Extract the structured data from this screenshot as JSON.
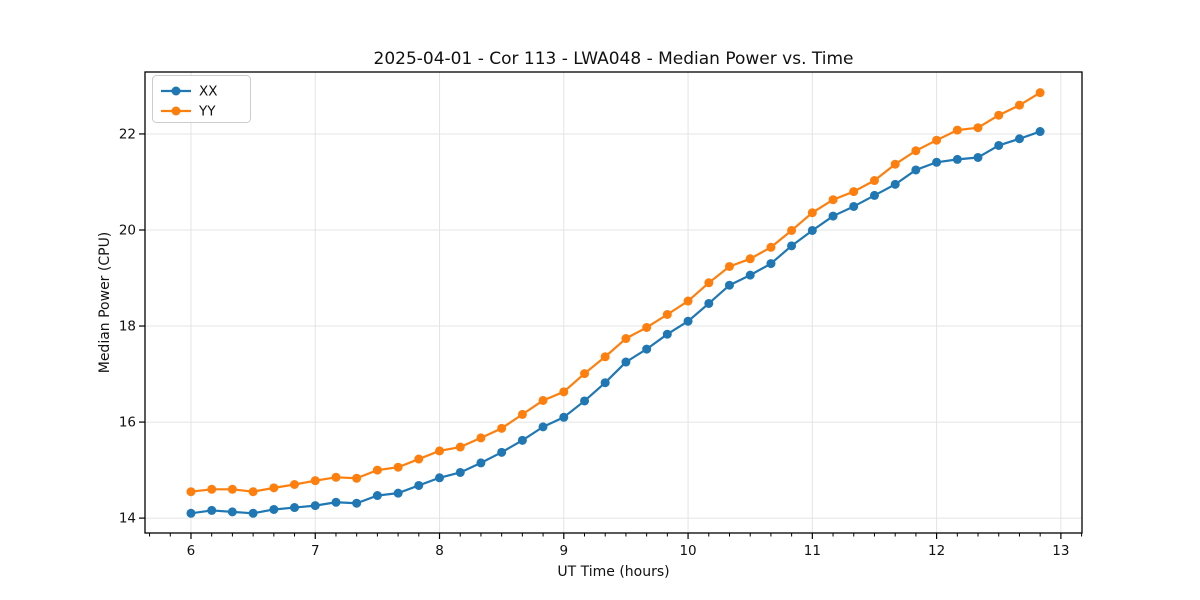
{
  "figure": {
    "background": "#ffffff"
  },
  "chart_data": {
    "type": "line",
    "title": "2025-04-01 - Cor 113 - LWA048 - Median Power vs. Time",
    "xlabel": "UT Time (hours)",
    "ylabel": "Median Power (CPU)",
    "xlim": [
      5.63,
      13.17
    ],
    "ylim": [
      13.69,
      23.29
    ],
    "xticks": [
      6,
      7,
      8,
      9,
      10,
      11,
      12,
      13
    ],
    "yticks": [
      14,
      16,
      18,
      20,
      22
    ],
    "x_minor_step": 0.166667,
    "grid": true,
    "legend_position": "upper left",
    "x": [
      6.0,
      6.167,
      6.333,
      6.5,
      6.667,
      6.833,
      7.0,
      7.167,
      7.333,
      7.5,
      7.667,
      7.833,
      8.0,
      8.167,
      8.333,
      8.5,
      8.667,
      8.833,
      9.0,
      9.167,
      9.333,
      9.5,
      9.667,
      9.833,
      10.0,
      10.167,
      10.333,
      10.5,
      10.667,
      10.833,
      11.0,
      11.167,
      11.333,
      11.5,
      11.667,
      11.833,
      12.0,
      12.167,
      12.333,
      12.5,
      12.667,
      12.833
    ],
    "series": [
      {
        "name": "XX",
        "color": "#1f77b4",
        "values": [
          14.1,
          14.16,
          14.13,
          14.1,
          14.18,
          14.22,
          14.26,
          14.33,
          14.31,
          14.47,
          14.52,
          14.68,
          14.84,
          14.95,
          15.15,
          15.37,
          15.62,
          15.9,
          16.1,
          16.44,
          16.82,
          17.25,
          17.52,
          17.83,
          18.1,
          18.47,
          18.85,
          19.06,
          19.3,
          19.67,
          19.99,
          20.29,
          20.49,
          20.72,
          20.95,
          21.25,
          21.41,
          21.47,
          21.51,
          21.76,
          21.9,
          22.05
        ]
      },
      {
        "name": "YY",
        "color": "#ff7f0e",
        "values": [
          14.55,
          14.6,
          14.6,
          14.55,
          14.63,
          14.7,
          14.78,
          14.85,
          14.83,
          15.0,
          15.06,
          15.23,
          15.4,
          15.48,
          15.67,
          15.87,
          16.16,
          16.45,
          16.63,
          17.01,
          17.36,
          17.74,
          17.97,
          18.24,
          18.52,
          18.9,
          19.24,
          19.4,
          19.64,
          19.99,
          20.36,
          20.63,
          20.8,
          21.03,
          21.37,
          21.65,
          21.87,
          22.08,
          22.13,
          22.39,
          22.6,
          22.86
        ]
      }
    ]
  },
  "style": {
    "grid_color": "#e4e4e4",
    "spine_color": "#000000",
    "tick_color": "#000000",
    "marker_radius": 4.5,
    "line_width": 2.2
  }
}
